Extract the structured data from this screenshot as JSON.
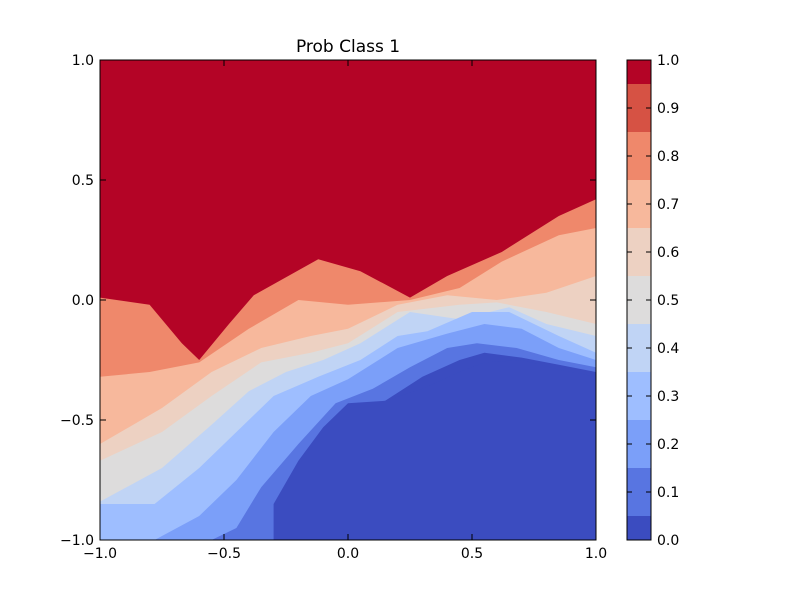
{
  "chart_data": {
    "type": "heatmap",
    "title": "Prob Class 1",
    "xlabel": "",
    "ylabel": "",
    "xlim": [
      -1.0,
      1.0
    ],
    "ylim": [
      -1.0,
      1.0
    ],
    "xticks": [
      "−1.0",
      "−0.5",
      "0.0",
      "0.5",
      "1.0"
    ],
    "xtick_values": [
      -1.0,
      -0.5,
      0.0,
      0.5,
      1.0
    ],
    "yticks": [
      "−1.0",
      "−0.5",
      "0.0",
      "0.5",
      "1.0"
    ],
    "ytick_values": [
      -1.0,
      -0.5,
      0.0,
      0.5,
      1.0
    ],
    "colormap": "coolwarm",
    "colorbar": {
      "ticks": [
        "0.0",
        "0.1",
        "0.2",
        "0.3",
        "0.4",
        "0.5",
        "0.6",
        "0.7",
        "0.8",
        "0.9",
        "1.0"
      ],
      "tick_values": [
        0.0,
        0.1,
        0.2,
        0.3,
        0.4,
        0.5,
        0.6,
        0.7,
        0.8,
        0.9,
        1.0
      ]
    },
    "levels": [
      {
        "value": 1.0,
        "color": "#b40426"
      },
      {
        "value": 0.9,
        "color": "#d65244"
      },
      {
        "value": 0.8,
        "color": "#ef886b"
      },
      {
        "value": 0.7,
        "color": "#f7b89c"
      },
      {
        "value": 0.6,
        "color": "#edd1c2"
      },
      {
        "value": 0.5,
        "color": "#dddcdc"
      },
      {
        "value": 0.4,
        "color": "#c0d4f5"
      },
      {
        "value": 0.3,
        "color": "#9ebeff"
      },
      {
        "value": 0.2,
        "color": "#7b9ff9"
      },
      {
        "value": 0.1,
        "color": "#5875e1"
      },
      {
        "value": 0.0,
        "color": "#3b4cc0"
      }
    ],
    "boundaries": [
      {
        "level_above": 0.9,
        "points": [
          [
            -1.0,
            0.01
          ],
          [
            -0.8,
            -0.02
          ],
          [
            -0.67,
            -0.18
          ],
          [
            -0.6,
            -0.25
          ],
          [
            -0.48,
            -0.1
          ],
          [
            -0.38,
            0.02
          ],
          [
            -0.12,
            0.17
          ],
          [
            0.05,
            0.12
          ],
          [
            0.25,
            0.01
          ],
          [
            0.4,
            0.1
          ],
          [
            0.62,
            0.2
          ],
          [
            0.85,
            0.35
          ],
          [
            1.0,
            0.42
          ]
        ]
      },
      {
        "level_above": 0.8,
        "points": [
          [
            -1.0,
            -0.32
          ],
          [
            -0.8,
            -0.3
          ],
          [
            -0.6,
            -0.26
          ],
          [
            -0.4,
            -0.12
          ],
          [
            -0.2,
            0.0
          ],
          [
            0.0,
            -0.02
          ],
          [
            0.25,
            0.0
          ],
          [
            0.45,
            0.05
          ],
          [
            0.62,
            0.16
          ],
          [
            0.85,
            0.27
          ],
          [
            1.0,
            0.3
          ]
        ]
      },
      {
        "level_above": 0.7,
        "points": [
          [
            -1.0,
            -0.6
          ],
          [
            -0.75,
            -0.45
          ],
          [
            -0.55,
            -0.3
          ],
          [
            -0.35,
            -0.2
          ],
          [
            -0.15,
            -0.15
          ],
          [
            0.0,
            -0.12
          ],
          [
            0.2,
            -0.02
          ],
          [
            0.4,
            0.02
          ],
          [
            0.6,
            0.0
          ],
          [
            0.8,
            0.03
          ],
          [
            1.0,
            0.1
          ]
        ]
      },
      {
        "level_above": 0.6,
        "points": [
          [
            -1.0,
            -0.67
          ],
          [
            -0.75,
            -0.55
          ],
          [
            -0.55,
            -0.4
          ],
          [
            -0.35,
            -0.26
          ],
          [
            -0.15,
            -0.22
          ],
          [
            0.0,
            -0.18
          ],
          [
            0.2,
            -0.05
          ],
          [
            0.45,
            -0.02
          ],
          [
            0.6,
            -0.01
          ],
          [
            0.8,
            -0.05
          ],
          [
            1.0,
            -0.1
          ]
        ]
      },
      {
        "level_above": 0.5,
        "points": [
          [
            -1.0,
            -0.84
          ],
          [
            -0.75,
            -0.7
          ],
          [
            -0.55,
            -0.52
          ],
          [
            -0.4,
            -0.38
          ],
          [
            -0.25,
            -0.3
          ],
          [
            -0.1,
            -0.25
          ],
          [
            0.05,
            -0.18
          ],
          [
            0.25,
            -0.05
          ],
          [
            0.45,
            -0.08
          ],
          [
            0.65,
            -0.03
          ],
          [
            0.8,
            -0.1
          ],
          [
            1.0,
            -0.15
          ]
        ]
      },
      {
        "level_above": 0.4,
        "points": [
          [
            -1.0,
            -0.85
          ],
          [
            -0.78,
            -0.85
          ],
          [
            -0.6,
            -0.7
          ],
          [
            -0.45,
            -0.55
          ],
          [
            -0.3,
            -0.4
          ],
          [
            -0.12,
            -0.32
          ],
          [
            0.05,
            -0.25
          ],
          [
            0.2,
            -0.15
          ],
          [
            0.32,
            -0.13
          ],
          [
            0.5,
            -0.05
          ],
          [
            0.65,
            -0.05
          ],
          [
            0.85,
            -0.15
          ],
          [
            1.0,
            -0.22
          ]
        ]
      },
      {
        "level_above": 0.3,
        "points": [
          [
            -0.78,
            -1.0
          ],
          [
            -0.6,
            -0.9
          ],
          [
            -0.45,
            -0.75
          ],
          [
            -0.3,
            -0.55
          ],
          [
            -0.15,
            -0.4
          ],
          [
            0.0,
            -0.33
          ],
          [
            0.2,
            -0.2
          ],
          [
            0.4,
            -0.14
          ],
          [
            0.55,
            -0.1
          ],
          [
            0.7,
            -0.12
          ],
          [
            0.85,
            -0.2
          ],
          [
            1.0,
            -0.25
          ]
        ]
      },
      {
        "level_above": 0.2,
        "points": [
          [
            -0.55,
            -1.0
          ],
          [
            -0.45,
            -0.95
          ],
          [
            -0.35,
            -0.78
          ],
          [
            -0.2,
            -0.6
          ],
          [
            -0.05,
            -0.43
          ],
          [
            0.1,
            -0.37
          ],
          [
            0.25,
            -0.28
          ],
          [
            0.4,
            -0.2
          ],
          [
            0.52,
            -0.18
          ],
          [
            0.68,
            -0.2
          ],
          [
            0.85,
            -0.25
          ],
          [
            1.0,
            -0.28
          ]
        ]
      },
      {
        "level_above": 0.1,
        "points": [
          [
            -0.3,
            -1.0
          ],
          [
            -0.25,
            -0.82
          ],
          [
            -0.12,
            -0.6
          ],
          [
            0.0,
            -0.47
          ],
          [
            0.15,
            -0.42
          ],
          [
            0.3,
            -0.32
          ],
          [
            0.45,
            -0.25
          ],
          [
            0.55,
            -0.22
          ],
          [
            0.7,
            -0.24
          ],
          [
            0.85,
            -0.27
          ],
          [
            1.0,
            -0.3
          ]
        ]
      },
      {
        "level_above": 0.0,
        "points": [
          [
            -0.3,
            -1.0
          ],
          [
            -0.3,
            -0.85
          ],
          [
            -0.2,
            -0.67
          ],
          [
            -0.1,
            -0.53
          ],
          [
            0.0,
            -0.43
          ],
          [
            0.15,
            -0.42
          ],
          [
            0.3,
            -0.37
          ],
          [
            0.45,
            -0.3
          ],
          [
            0.55,
            -0.26
          ],
          [
            0.7,
            -0.25
          ],
          [
            0.85,
            -0.29
          ],
          [
            1.0,
            -0.32
          ]
        ]
      }
    ]
  }
}
